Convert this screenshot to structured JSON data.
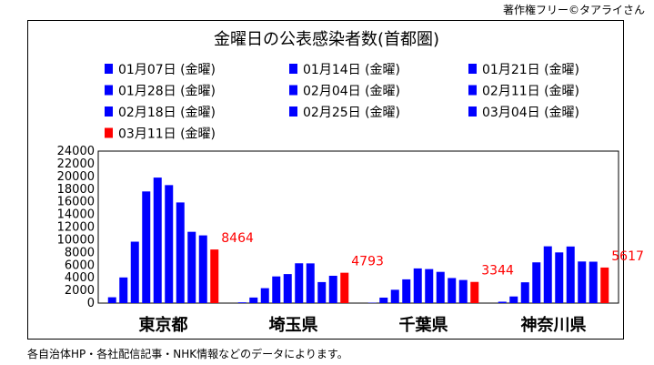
{
  "credit": "著作権フリー©タアライさん",
  "footnote": "各自治体HP・各社配信記事・NHK情報などのデータによります。",
  "colors": {
    "weekly": "#0000ff",
    "latest": "#ff0000",
    "axis": "#000000",
    "grid": "#d0d0d0"
  },
  "chart_data": {
    "type": "bar",
    "title": "金曜日の公表感染者数(首都圏)",
    "categories": [
      "東京都",
      "埼玉県",
      "千葉県",
      "神奈川県"
    ],
    "series": [
      {
        "name": "01月07日 (金曜)",
        "values": [
          922,
          122,
          59,
          220
        ]
      },
      {
        "name": "01月14日 (金曜)",
        "values": [
          4051,
          881,
          865,
          1049
        ]
      },
      {
        "name": "01月21日 (金曜)",
        "values": [
          9699,
          2357,
          2105,
          3285
        ]
      },
      {
        "name": "01月28日 (金曜)",
        "values": [
          17631,
          4212,
          3750,
          6434
        ]
      },
      {
        "name": "02月04日 (金曜)",
        "values": [
          19818,
          4584,
          5476,
          8968
        ]
      },
      {
        "name": "02月11日 (金曜)",
        "values": [
          18631,
          6286,
          5372,
          8004
        ]
      },
      {
        "name": "02月18日 (金曜)",
        "values": [
          15893,
          6270,
          4931,
          8937
        ]
      },
      {
        "name": "02月25日 (金曜)",
        "values": [
          11257,
          3319,
          3960,
          6569
        ]
      },
      {
        "name": "03月04日 (金曜)",
        "values": [
          10693,
          4316,
          3646,
          6538
        ]
      },
      {
        "name": "03月11日 (金曜)",
        "values": [
          8464,
          4793,
          3344,
          5617
        ],
        "labels": [
          "8464",
          "4793",
          "3344",
          "5617"
        ]
      }
    ],
    "ylim": [
      0,
      24000
    ],
    "yticks": [
      "0",
      "2000",
      "4000",
      "6000",
      "8000",
      "10000",
      "12000",
      "14000",
      "16000",
      "18000",
      "20000",
      "22000",
      "24000"
    ],
    "grid": false,
    "legend_position": "top"
  }
}
